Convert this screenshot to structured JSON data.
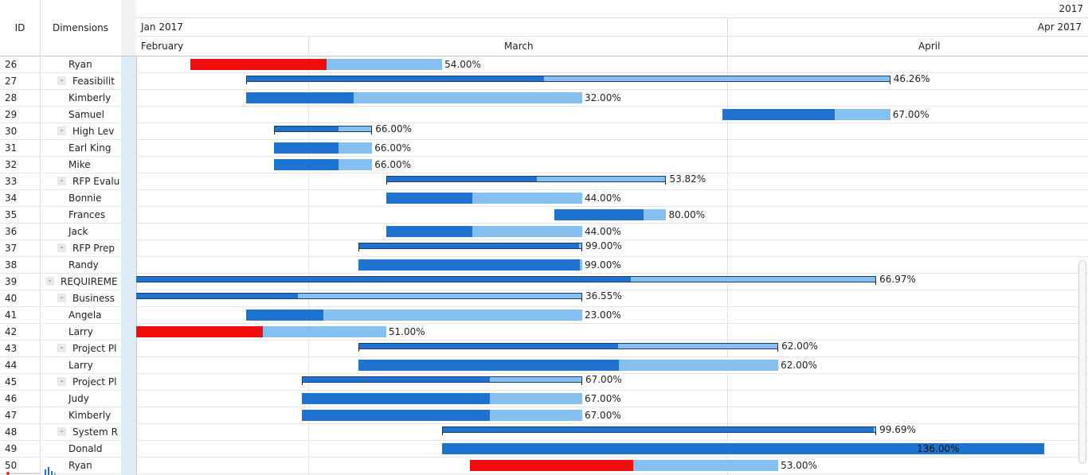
{
  "grid": {
    "columns": {
      "id": "ID",
      "dimensions": "Dimensions"
    }
  },
  "timeline": {
    "year": "2017",
    "quarter_start": "Jan 2017",
    "quarter_end": "Apr 2017",
    "months": [
      "February",
      "March",
      "April"
    ]
  },
  "rows": [
    {
      "id": "26",
      "name": "Ryan",
      "summary": false,
      "collapse": "",
      "start": "2017-02-04",
      "end": "2017-02-22",
      "progress": 54.0,
      "pct": "54.00%",
      "late": true
    },
    {
      "id": "27",
      "name": "Feasibilit",
      "summary": true,
      "collapse": "-",
      "start": "2017-02-08",
      "end": "2017-03-26",
      "progress": 46.26,
      "pct": "46.26%",
      "late": false
    },
    {
      "id": "28",
      "name": "Kimberly",
      "summary": false,
      "collapse": "",
      "start": "2017-02-08",
      "end": "2017-03-04",
      "progress": 32.0,
      "pct": "32.00%",
      "late": false
    },
    {
      "id": "29",
      "name": "Samuel",
      "summary": false,
      "collapse": "",
      "start": "2017-03-14",
      "end": "2017-03-26",
      "progress": 67.0,
      "pct": "67.00%",
      "late": false
    },
    {
      "id": "30",
      "name": "High Lev",
      "summary": true,
      "collapse": "-",
      "start": "2017-02-10",
      "end": "2017-02-17",
      "progress": 66.0,
      "pct": "66.00%",
      "late": false
    },
    {
      "id": "31",
      "name": "Earl King",
      "summary": false,
      "collapse": "",
      "start": "2017-02-10",
      "end": "2017-02-17",
      "progress": 66.0,
      "pct": "66.00%",
      "late": false
    },
    {
      "id": "32",
      "name": "Mike",
      "summary": false,
      "collapse": "",
      "start": "2017-02-10",
      "end": "2017-02-17",
      "progress": 66.0,
      "pct": "66.00%",
      "late": false
    },
    {
      "id": "33",
      "name": "RFP Evalu",
      "summary": true,
      "collapse": "-",
      "start": "2017-02-18",
      "end": "2017-03-10",
      "progress": 53.82,
      "pct": "53.82%",
      "late": false
    },
    {
      "id": "34",
      "name": "Bonnie",
      "summary": false,
      "collapse": "",
      "start": "2017-02-18",
      "end": "2017-03-04",
      "progress": 44.0,
      "pct": "44.00%",
      "late": false
    },
    {
      "id": "35",
      "name": "Frances",
      "summary": false,
      "collapse": "",
      "start": "2017-03-02",
      "end": "2017-03-10",
      "progress": 80.0,
      "pct": "80.00%",
      "late": false
    },
    {
      "id": "36",
      "name": "Jack",
      "summary": false,
      "collapse": "",
      "start": "2017-02-18",
      "end": "2017-03-04",
      "progress": 44.0,
      "pct": "44.00%",
      "late": false
    },
    {
      "id": "37",
      "name": "RFP Prep",
      "summary": true,
      "collapse": "-",
      "start": "2017-02-16",
      "end": "2017-03-04",
      "progress": 99.0,
      "pct": "99.00%",
      "late": false
    },
    {
      "id": "38",
      "name": "Randy",
      "summary": false,
      "collapse": "",
      "start": "2017-02-16",
      "end": "2017-03-04",
      "progress": 99.0,
      "pct": "99.00%",
      "late": false
    },
    {
      "id": "39",
      "name": "REQUIREME",
      "summary": true,
      "collapse": "-",
      "start": "2017-01-31",
      "end": "2017-03-25",
      "progress": 66.97,
      "pct": "66.97%",
      "late": false
    },
    {
      "id": "40",
      "name": "Business",
      "summary": true,
      "collapse": "-",
      "start": "2017-01-31",
      "end": "2017-03-04",
      "progress": 36.55,
      "pct": "36.55%",
      "late": false
    },
    {
      "id": "41",
      "name": "Angela",
      "summary": false,
      "collapse": "",
      "start": "2017-02-08",
      "end": "2017-03-04",
      "progress": 23.0,
      "pct": "23.00%",
      "late": false
    },
    {
      "id": "42",
      "name": "Larry",
      "summary": false,
      "collapse": "",
      "start": "2017-01-31",
      "end": "2017-02-18",
      "progress": 51.0,
      "pct": "51.00%",
      "late": false,
      "late_flag": true
    },
    {
      "id": "43",
      "name": "Project Pl",
      "summary": true,
      "collapse": "-",
      "start": "2017-02-16",
      "end": "2017-03-18",
      "progress": 62.0,
      "pct": "62.00%",
      "late": false
    },
    {
      "id": "44",
      "name": "Larry",
      "summary": false,
      "collapse": "",
      "start": "2017-02-16",
      "end": "2017-03-18",
      "progress": 62.0,
      "pct": "62.00%",
      "late": false
    },
    {
      "id": "45",
      "name": "Project Pl",
      "summary": true,
      "collapse": "-",
      "start": "2017-02-12",
      "end": "2017-03-04",
      "progress": 67.0,
      "pct": "67.00%",
      "late": false
    },
    {
      "id": "46",
      "name": "Judy",
      "summary": false,
      "collapse": "",
      "start": "2017-02-12",
      "end": "2017-03-04",
      "progress": 67.0,
      "pct": "67.00%",
      "late": false
    },
    {
      "id": "47",
      "name": "Kimberly",
      "summary": false,
      "collapse": "",
      "start": "2017-02-12",
      "end": "2017-03-04",
      "progress": 67.0,
      "pct": "67.00%",
      "late": false
    },
    {
      "id": "48",
      "name": "System R",
      "summary": true,
      "collapse": "-",
      "start": "2017-02-22",
      "end": "2017-03-25",
      "progress": 99.69,
      "pct": "99.69%",
      "late": false
    },
    {
      "id": "49",
      "name": "Donald",
      "summary": false,
      "collapse": "",
      "start": "2017-02-22",
      "end": "2017-04-06",
      "progress": 136.0,
      "pct": "136.00%",
      "late": false,
      "inside": true
    },
    {
      "id": "50",
      "name": "Ryan",
      "summary": false,
      "collapse": "",
      "start": "2017-02-24",
      "end": "2017-03-18",
      "progress": 53.0,
      "pct": "53.00%",
      "late": true
    }
  ],
  "colors": {
    "done": "#1f73d0",
    "remaining": "#85c0f1",
    "late": "#f00d0d",
    "splitter": "#dbeaf3"
  }
}
